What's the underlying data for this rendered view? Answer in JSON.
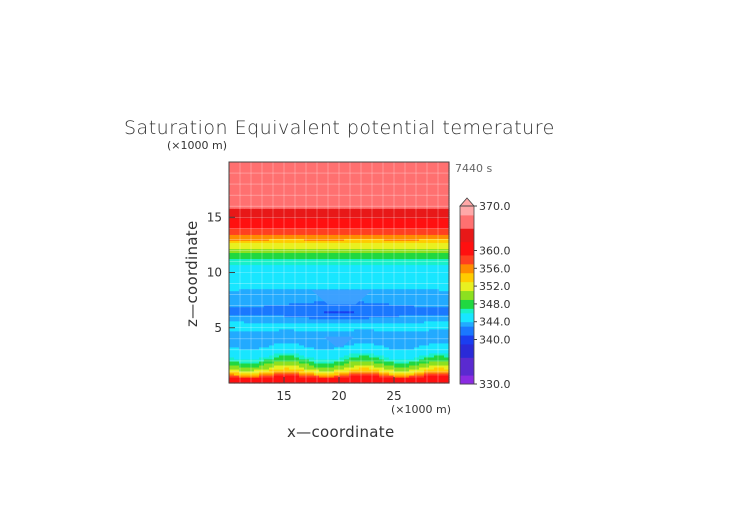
{
  "chart_data": {
    "type": "heatmap",
    "title": "Saturation Equivalent potential temerature",
    "xlabel": "x—coordinate",
    "ylabel": "z—coordinate",
    "x_unit": "(×1000 m)",
    "y_unit": "(×1000 m)",
    "time_label": "7440 s",
    "xlim": [
      10,
      30
    ],
    "ylim": [
      0,
      20
    ],
    "x_ticks": [
      15,
      20,
      25
    ],
    "y_ticks": [
      5,
      10,
      15
    ],
    "grid": true,
    "colorbar": {
      "range": [
        330,
        370
      ],
      "tick_values": [
        370.0,
        360.0,
        356.0,
        352.0,
        348.0,
        344.0,
        340.0,
        330.0
      ],
      "tick_labels": [
        "370.0",
        "360.0",
        "356.0",
        "352.0",
        "348.0",
        "344.0",
        "340.0",
        "330.0"
      ],
      "extend": "max"
    },
    "profile_z_km": [
      0.0,
      0.5,
      1.0,
      1.5,
      2.0,
      2.5,
      3.0,
      3.5,
      4.0,
      4.5,
      5.0,
      5.5,
      6.0,
      6.5,
      7.0,
      7.5,
      8.0,
      9.0,
      10.0,
      11.0,
      11.5,
      12.0,
      12.5,
      13.0,
      13.5,
      14.0,
      14.5,
      15.0,
      15.5,
      16.0,
      17.0,
      20.0
    ],
    "profile_theta_K": [
      361,
      360,
      354,
      350,
      348,
      345.5,
      345,
      344,
      343.5,
      344,
      344.5,
      344.5,
      343.5,
      342,
      343,
      344,
      344.2,
      344.5,
      344.8,
      346,
      348,
      350,
      352,
      355,
      357,
      359,
      360.5,
      362,
      364,
      366,
      367.5,
      368
    ]
  }
}
